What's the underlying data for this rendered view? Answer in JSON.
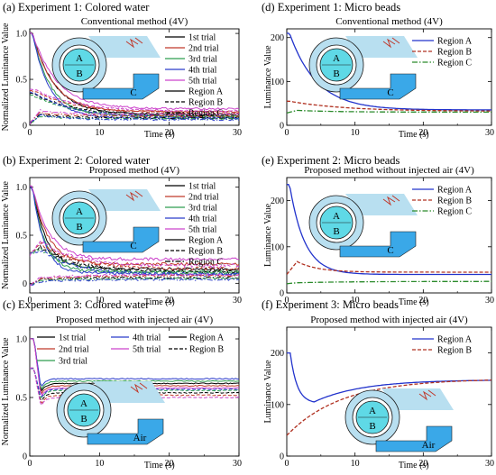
{
  "colors": {
    "trial1": "#000000",
    "trial2": "#c0392b",
    "trial3": "#2e9e4f",
    "trial4": "#2a3cc9",
    "trial5": "#cc44cc",
    "regionA": "#2233cc",
    "regionB": "#b03020",
    "regionC": "#2a8a2a",
    "inset_ring": "#b8dff0",
    "inset_core": "#5fd9e6",
    "inset_channel": "#3aa8e8"
  },
  "chart_data": [
    {
      "id": "a",
      "type": "line",
      "panel_title": "(a) Experiment 1: Colored water",
      "subtitle": "Conventional method (4V)",
      "xlabel": "Time (s)",
      "ylabel": "Normalized Luminance Value",
      "xlim": [
        0,
        30
      ],
      "ylim": [
        0,
        1.05
      ],
      "xticks": [
        "0",
        "10",
        "20",
        "30"
      ],
      "yticks": [
        0,
        0.5,
        1.0
      ],
      "ytick_labels": [
        "0",
        "0.5",
        "1.0"
      ],
      "legend": {
        "trials": [
          "1st trial",
          "2nd trial",
          "3rd trial",
          "4th trial",
          "5th trial"
        ],
        "regions": [
          "Region A",
          "Region B",
          "Region C"
        ]
      },
      "inset": {
        "labels": [
          "A",
          "B",
          "C"
        ]
      },
      "series": [
        {
          "trial": 1,
          "region": "A",
          "kind": "decay",
          "start": 1.0,
          "end": 0.12,
          "tau": 3.2,
          "noise": 0.01
        },
        {
          "trial": 2,
          "region": "A",
          "kind": "decay",
          "start": 1.0,
          "end": 0.15,
          "tau": 3.0,
          "noise": 0.01
        },
        {
          "trial": 3,
          "region": "A",
          "kind": "decay",
          "start": 1.0,
          "end": 0.1,
          "tau": 2.6,
          "noise": 0.01
        },
        {
          "trial": 4,
          "region": "A",
          "kind": "decay",
          "start": 1.0,
          "end": 0.08,
          "tau": 2.4,
          "noise": 0.01
        },
        {
          "trial": 5,
          "region": "A",
          "kind": "decay",
          "start": 1.0,
          "end": 0.18,
          "tau": 3.5,
          "noise": 0.01
        },
        {
          "trial": 1,
          "region": "B",
          "kind": "decay",
          "start": 0.35,
          "end": 0.1,
          "tau": 6.0,
          "noise": 0.01
        },
        {
          "trial": 2,
          "region": "B",
          "kind": "decay",
          "start": 0.38,
          "end": 0.13,
          "tau": 6.0,
          "noise": 0.01
        },
        {
          "trial": 3,
          "region": "B",
          "kind": "decay",
          "start": 0.33,
          "end": 0.09,
          "tau": 6.0,
          "noise": 0.01
        },
        {
          "trial": 4,
          "region": "B",
          "kind": "decay",
          "start": 0.36,
          "end": 0.08,
          "tau": 6.0,
          "noise": 0.01
        },
        {
          "trial": 5,
          "region": "B",
          "kind": "decay",
          "start": 0.4,
          "end": 0.15,
          "tau": 6.0,
          "noise": 0.01
        },
        {
          "trial": 1,
          "region": "C",
          "kind": "rise",
          "start": 0.02,
          "peak": 0.12,
          "end": 0.08,
          "tau": 4.0,
          "noise": 0.01
        },
        {
          "trial": 2,
          "region": "C",
          "kind": "rise",
          "start": 0.02,
          "peak": 0.14,
          "end": 0.1,
          "tau": 4.0,
          "noise": 0.01
        },
        {
          "trial": 3,
          "region": "C",
          "kind": "rise",
          "start": 0.02,
          "peak": 0.1,
          "end": 0.07,
          "tau": 4.0,
          "noise": 0.01
        },
        {
          "trial": 4,
          "region": "C",
          "kind": "rise",
          "start": 0.02,
          "peak": 0.11,
          "end": 0.06,
          "tau": 4.0,
          "noise": 0.01
        },
        {
          "trial": 5,
          "region": "C",
          "kind": "rise",
          "start": 0.02,
          "peak": 0.16,
          "end": 0.12,
          "tau": 4.0,
          "noise": 0.01
        }
      ]
    },
    {
      "id": "b",
      "type": "line",
      "panel_title": "(b) Experiment 2: Colored water",
      "subtitle": "Proposed method (4V)",
      "xlabel": "Time (s)",
      "ylabel": "Normalized Luminance Value",
      "xlim": [
        0,
        30
      ],
      "ylim": [
        -0.1,
        1.1
      ],
      "xticks": [
        "0",
        "10",
        "20",
        "30"
      ],
      "yticks": [
        0,
        0.5,
        1.0
      ],
      "ytick_labels": [
        "0",
        "0.5",
        "1.0"
      ],
      "legend": {
        "trials": [
          "1st trial",
          "2nd trial",
          "3rd trial",
          "4th trial",
          "5th trial"
        ],
        "regions": [
          "Region A",
          "Region B",
          "Region C"
        ]
      },
      "inset": {
        "labels": [
          "A",
          "B",
          "C"
        ]
      },
      "series": [
        {
          "trial": 1,
          "region": "A",
          "kind": "decay",
          "start": 1.0,
          "end": 0.15,
          "tau": 2.0,
          "noise": 0.015
        },
        {
          "trial": 2,
          "region": "A",
          "kind": "decay",
          "start": 1.0,
          "end": 0.2,
          "tau": 2.2,
          "noise": 0.015
        },
        {
          "trial": 3,
          "region": "A",
          "kind": "decay",
          "start": 1.0,
          "end": 0.12,
          "tau": 1.8,
          "noise": 0.015
        },
        {
          "trial": 4,
          "region": "A",
          "kind": "decay",
          "start": 1.0,
          "end": 0.1,
          "tau": 1.7,
          "noise": 0.015
        },
        {
          "trial": 5,
          "region": "A",
          "kind": "decay",
          "start": 1.0,
          "end": 0.25,
          "tau": 2.4,
          "noise": 0.015
        },
        {
          "trial": 1,
          "region": "B",
          "kind": "rise",
          "start": 0.3,
          "peak": 0.38,
          "end": 0.12,
          "tau": 5.0,
          "noise": 0.02
        },
        {
          "trial": 2,
          "region": "B",
          "kind": "rise",
          "start": 0.3,
          "peak": 0.42,
          "end": 0.15,
          "tau": 5.0,
          "noise": 0.02
        },
        {
          "trial": 3,
          "region": "B",
          "kind": "rise",
          "start": 0.3,
          "peak": 0.36,
          "end": 0.1,
          "tau": 5.0,
          "noise": 0.02
        },
        {
          "trial": 4,
          "region": "B",
          "kind": "rise",
          "start": 0.3,
          "peak": 0.35,
          "end": 0.09,
          "tau": 5.0,
          "noise": 0.02
        },
        {
          "trial": 5,
          "region": "B",
          "kind": "rise",
          "start": 0.3,
          "peak": 0.44,
          "end": 0.18,
          "tau": 5.0,
          "noise": 0.02
        },
        {
          "trial": 1,
          "region": "C",
          "kind": "rise",
          "start": -0.02,
          "peak": 0.04,
          "end": 0.06,
          "tau": 6.0,
          "noise": 0.01
        },
        {
          "trial": 2,
          "region": "C",
          "kind": "rise",
          "start": -0.02,
          "peak": 0.05,
          "end": 0.08,
          "tau": 6.0,
          "noise": 0.01
        },
        {
          "trial": 3,
          "region": "C",
          "kind": "rise",
          "start": -0.02,
          "peak": 0.03,
          "end": 0.05,
          "tau": 6.0,
          "noise": 0.01
        },
        {
          "trial": 4,
          "region": "C",
          "kind": "rise",
          "start": -0.02,
          "peak": 0.02,
          "end": 0.04,
          "tau": 6.0,
          "noise": 0.01
        },
        {
          "trial": 5,
          "region": "C",
          "kind": "rise",
          "start": -0.02,
          "peak": 0.06,
          "end": 0.09,
          "tau": 6.0,
          "noise": 0.01
        }
      ]
    },
    {
      "id": "c",
      "type": "line",
      "panel_title": "(c) Experiment 3: Colored water",
      "subtitle": "Proposed method with injected air (4V)",
      "xlabel": "Time (s)",
      "ylabel": "Normalized Luminance Value",
      "xlim": [
        0,
        30
      ],
      "ylim": [
        0,
        1.1
      ],
      "xticks": [
        "0",
        "10",
        "20",
        "30"
      ],
      "yticks": [
        0,
        0.5,
        1.0
      ],
      "ytick_labels": [
        "0",
        "0.5",
        "1.0"
      ],
      "legend": {
        "trials": [
          "1st trial",
          "2nd trial",
          "3rd trial",
          "4th trial",
          "5th trial"
        ],
        "regions": [
          "Region A",
          "Region B"
        ]
      },
      "inset": {
        "labels": [
          "A",
          "B",
          "Air"
        ]
      },
      "series": [
        {
          "trial": 1,
          "region": "A",
          "kind": "dip",
          "start": 1.0,
          "end": 0.62,
          "tau": 0.6,
          "noise": 0.004
        },
        {
          "trial": 2,
          "region": "A",
          "kind": "dip",
          "start": 1.0,
          "end": 0.6,
          "tau": 0.6,
          "noise": 0.004
        },
        {
          "trial": 3,
          "region": "A",
          "kind": "dip",
          "start": 1.0,
          "end": 0.64,
          "tau": 0.6,
          "noise": 0.004
        },
        {
          "trial": 4,
          "region": "A",
          "kind": "dip",
          "start": 1.0,
          "end": 0.66,
          "tau": 0.6,
          "noise": 0.004
        },
        {
          "trial": 5,
          "region": "A",
          "kind": "dip",
          "start": 1.0,
          "end": 0.58,
          "tau": 0.6,
          "noise": 0.004
        },
        {
          "trial": 1,
          "region": "B",
          "kind": "dip",
          "start": 0.75,
          "end": 0.54,
          "tau": 0.6,
          "noise": 0.004
        },
        {
          "trial": 2,
          "region": "B",
          "kind": "dip",
          "start": 0.75,
          "end": 0.52,
          "tau": 0.6,
          "noise": 0.004
        },
        {
          "trial": 3,
          "region": "B",
          "kind": "dip",
          "start": 0.75,
          "end": 0.56,
          "tau": 0.6,
          "noise": 0.004
        },
        {
          "trial": 4,
          "region": "B",
          "kind": "dip",
          "start": 0.75,
          "end": 0.57,
          "tau": 0.6,
          "noise": 0.004
        },
        {
          "trial": 5,
          "region": "B",
          "kind": "dip",
          "start": 0.75,
          "end": 0.5,
          "tau": 0.6,
          "noise": 0.004
        }
      ]
    },
    {
      "id": "d",
      "type": "line",
      "panel_title": "(d) Experiment 1: Micro beads",
      "subtitle": "Conventional method (4V)",
      "xlabel": "Time (s)",
      "ylabel": "Luminance Value",
      "xlim": [
        0,
        30
      ],
      "ylim": [
        0,
        220
      ],
      "xticks": [
        "0",
        "10",
        "20",
        "30"
      ],
      "yticks": [
        0,
        100,
        200
      ],
      "ytick_labels": [
        "0",
        "100",
        "200"
      ],
      "legend": {
        "regions": [
          "Region A",
          "Region B",
          "Region C"
        ]
      },
      "inset": {
        "labels": [
          "A",
          "B",
          "C"
        ]
      },
      "series": [
        {
          "region": "A",
          "kind": "decay",
          "start": 210,
          "end": 35,
          "tau": 4.0,
          "noise": 0
        },
        {
          "region": "B",
          "kind": "decay",
          "start": 55,
          "end": 32,
          "tau": 8.0,
          "noise": 0
        },
        {
          "region": "C",
          "kind": "rise",
          "start": 28,
          "peak": 34,
          "end": 30,
          "tau": 6.0,
          "noise": 0
        }
      ]
    },
    {
      "id": "e",
      "type": "line",
      "panel_title": "(e) Experiment 2: Micro beads",
      "subtitle": "Proposed method without injected air (4V)",
      "xlabel": "Time (s)",
      "ylabel": "Luminance Value",
      "xlim": [
        0,
        30
      ],
      "ylim": [
        0,
        250
      ],
      "xticks": [
        "0",
        "10",
        "20",
        "30"
      ],
      "yticks": [
        0,
        100,
        200
      ],
      "ytick_labels": [
        "0",
        "100",
        "200"
      ],
      "legend": {
        "regions": [
          "Region A",
          "Region B",
          "Region C"
        ]
      },
      "inset": {
        "labels": [
          "A",
          "B",
          "C"
        ]
      },
      "series": [
        {
          "region": "A",
          "kind": "decay",
          "start": 235,
          "end": 40,
          "tau": 2.2,
          "noise": 0
        },
        {
          "region": "B",
          "kind": "rise",
          "start": 40,
          "peak": 68,
          "end": 45,
          "tau": 3.0,
          "noise": 0
        },
        {
          "region": "C",
          "kind": "rise",
          "start": 20,
          "peak": 22,
          "end": 25,
          "tau": 8.0,
          "noise": 0
        }
      ]
    },
    {
      "id": "f",
      "type": "line",
      "panel_title": "(f) Experiment 3: Micro beads",
      "subtitle": "Proposed method with injected air (4V)",
      "xlabel": "Time (s)",
      "ylabel": "Luminance Value",
      "xlim": [
        0,
        30
      ],
      "ylim": [
        0,
        250
      ],
      "xticks": [
        "0",
        "10",
        "20",
        "30"
      ],
      "yticks": [
        0,
        100,
        200
      ],
      "ytick_labels": [
        "0",
        "100",
        "200"
      ],
      "legend": {
        "regions": [
          "Region A",
          "Region B"
        ]
      },
      "inset": {
        "labels": [
          "A",
          "B",
          "Air"
        ]
      },
      "series": [
        {
          "region": "A",
          "kind": "vdip",
          "start": 200,
          "min": 105,
          "tmin": 4.0,
          "end": 148,
          "noise": 0
        },
        {
          "region": "B",
          "kind": "rise2",
          "start": 40,
          "end": 150,
          "tau": 8.0,
          "noise": 0
        }
      ]
    }
  ]
}
